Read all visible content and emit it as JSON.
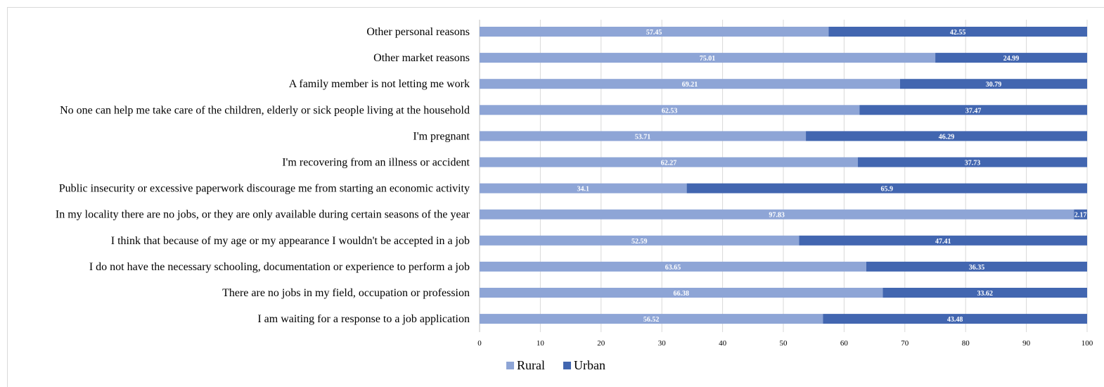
{
  "chart_data": {
    "type": "bar",
    "orientation": "horizontal",
    "stacked": true,
    "categories": [
      "Other personal reasons",
      "Other market reasons",
      "A family member is not letting me work",
      "No one can help me take care of the children, elderly or sick people living at the household",
      "I'm pregnant",
      "I'm recovering from an illness or accident",
      "Public insecurity or excessive paperwork discourage me from starting an economic activity",
      "In my locality there are no jobs, or they are only available during certain seasons of the year",
      "I think that because of my age or my appearance I wouldn't be accepted in a job",
      "I do not have the necessary schooling, documentation or experience to perform a job",
      "There are no jobs in my field, occupation or profession",
      "I am waiting for a response to a job application"
    ],
    "series": [
      {
        "name": "Rural",
        "color": "#8ea5d6",
        "values": [
          57.45,
          75.01,
          69.21,
          62.53,
          53.71,
          62.27,
          34.1,
          97.83,
          52.59,
          63.65,
          66.38,
          56.52
        ]
      },
      {
        "name": "Urban",
        "color": "#4266b0",
        "values": [
          42.55,
          24.99,
          30.79,
          37.47,
          46.29,
          37.73,
          65.9,
          2.17,
          47.41,
          36.35,
          33.62,
          43.48
        ]
      }
    ],
    "xlim": [
      0,
      100
    ],
    "xticks": [
      "0",
      "10",
      "20",
      "30",
      "40",
      "50",
      "60",
      "70",
      "80",
      "90",
      "100"
    ],
    "grid": true,
    "legend": "bottom",
    "title": "",
    "xlabel": "",
    "ylabel": ""
  }
}
